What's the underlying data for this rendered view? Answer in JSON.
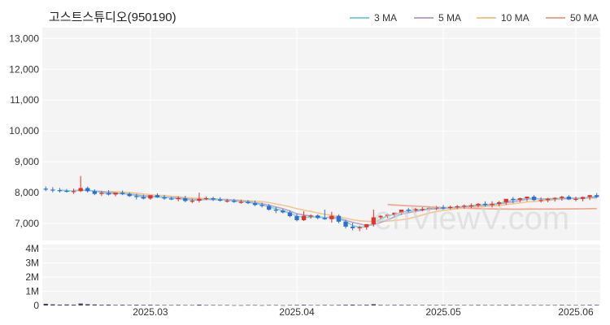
{
  "chart_data": {
    "type": "candlestick",
    "title": "고스트스튜디오(950190)",
    "watermark": "enViewV.com",
    "legend": [
      {
        "name": "3 MA",
        "color": "#7fd1d6"
      },
      {
        "name": "5 MA",
        "color": "#b9a2cc"
      },
      {
        "name": "10 MA",
        "color": "#f3c590"
      },
      {
        "name": "50 MA",
        "color": "#f2a18c"
      }
    ],
    "legend_position": "top-right",
    "colors": {
      "up": "#e8302a",
      "down": "#2f6fd0",
      "volume": "#3b3f66",
      "grid": "#ececec",
      "plot_bg": "#f4f4f4"
    },
    "x_ticks": [
      "2025.03",
      "2025.04",
      "2025.05",
      "2025.06"
    ],
    "x_tick_index": [
      15,
      36,
      57,
      76
    ],
    "y_ticks": [
      "7,000",
      "8,000",
      "9,000",
      "10,000",
      "11,000",
      "12,000",
      "13,000"
    ],
    "y_tick_values": [
      7000,
      8000,
      9000,
      10000,
      11000,
      12000,
      13000
    ],
    "ylim": [
      6450,
      13350
    ],
    "volume_ticks": [
      "0",
      "1M",
      "2M",
      "3M",
      "4M"
    ],
    "volume_tick_values": [
      0,
      1000000,
      2000000,
      3000000,
      4000000
    ],
    "volume_ylim": [
      0,
      4300000
    ],
    "n_days": 80,
    "opens": [
      8130,
      8100,
      8080,
      8060,
      8050,
      8050,
      8150,
      8050,
      7960,
      7990,
      7940,
      8000,
      7960,
      7890,
      7860,
      7810,
      7920,
      7850,
      7810,
      7800,
      7820,
      7730,
      7740,
      7800,
      7820,
      7780,
      7740,
      7740,
      7700,
      7700,
      7660,
      7600,
      7570,
      7450,
      7420,
      7360,
      7240,
      7110,
      7250,
      7260,
      7180,
      7140,
      7250,
      7060,
      6900,
      6850,
      6880,
      6980,
      7200,
      7250,
      7290,
      7350,
      7450,
      7420,
      7470,
      7470,
      7510,
      7520,
      7500,
      7540,
      7560,
      7580,
      7590,
      7640,
      7600,
      7640,
      7690,
      7800,
      7770,
      7820,
      7870,
      7760,
      7760,
      7800,
      7830,
      7870,
      7780,
      7800,
      7860,
      7920
    ],
    "highs": [
      8200,
      8180,
      8150,
      8120,
      8130,
      8540,
      8200,
      8110,
      8050,
      8080,
      8010,
      8070,
      8010,
      7960,
      7940,
      7900,
      7980,
      7930,
      7870,
      7880,
      7900,
      7810,
      8000,
      7870,
      7870,
      7850,
      7800,
      7800,
      7770,
      7760,
      7740,
      7680,
      7630,
      7530,
      7480,
      7430,
      7320,
      7400,
      7300,
      7300,
      7450,
      7380,
      7300,
      7120,
      7020,
      6930,
      6960,
      7450,
      7270,
      7320,
      7360,
      7420,
      7510,
      7510,
      7530,
      7550,
      7580,
      7600,
      7580,
      7600,
      7620,
      7650,
      7660,
      7720,
      7720,
      7730,
      7780,
      7860,
      7840,
      7870,
      7920,
      7850,
      7830,
      7850,
      7900,
      7920,
      7870,
      7870,
      7930,
      7990
    ],
    "lows": [
      8050,
      8010,
      8000,
      8000,
      7960,
      8020,
      8000,
      7920,
      7890,
      7910,
      7880,
      7920,
      7860,
      7780,
      7780,
      7770,
      7830,
      7770,
      7760,
      7720,
      7690,
      7660,
      7680,
      7760,
      7730,
      7710,
      7680,
      7670,
      7640,
      7630,
      7560,
      7520,
      7420,
      7340,
      7330,
      7200,
      7070,
      7080,
      7160,
      7140,
      7120,
      7030,
      7010,
      6840,
      6780,
      6750,
      6800,
      6900,
      7140,
      7170,
      7220,
      7280,
      7370,
      7360,
      7400,
      7420,
      7440,
      7450,
      7460,
      7470,
      7480,
      7500,
      7520,
      7550,
      7520,
      7560,
      7610,
      7660,
      7690,
      7720,
      7730,
      7680,
      7690,
      7710,
      7740,
      7760,
      7720,
      7720,
      7760,
      7830
    ],
    "closes": [
      8100,
      8080,
      8060,
      8050,
      8050,
      8150,
      8050,
      7960,
      7990,
      7940,
      8000,
      7960,
      7890,
      7860,
      7810,
      7920,
      7850,
      7810,
      7800,
      7820,
      7730,
      7740,
      7800,
      7820,
      7780,
      7740,
      7740,
      7700,
      7700,
      7660,
      7600,
      7570,
      7450,
      7420,
      7360,
      7240,
      7110,
      7250,
      7260,
      7180,
      7140,
      7250,
      7060,
      6900,
      6850,
      6880,
      6980,
      7200,
      7250,
      7290,
      7350,
      7450,
      7420,
      7470,
      7470,
      7510,
      7520,
      7500,
      7540,
      7560,
      7580,
      7590,
      7640,
      7600,
      7640,
      7690,
      7800,
      7770,
      7820,
      7870,
      7760,
      7760,
      7800,
      7830,
      7870,
      7780,
      7800,
      7860,
      7920,
      7860
    ],
    "volumes": [
      120000,
      80000,
      60000,
      70000,
      60000,
      140000,
      90000,
      70000,
      50000,
      60000,
      40000,
      50000,
      40000,
      50000,
      40000,
      50000,
      40000,
      30000,
      30000,
      40000,
      30000,
      30000,
      60000,
      30000,
      30000,
      30000,
      30000,
      20000,
      20000,
      30000,
      30000,
      20000,
      30000,
      30000,
      20000,
      30000,
      40000,
      50000,
      30000,
      30000,
      40000,
      30000,
      40000,
      50000,
      60000,
      40000,
      50000,
      90000,
      40000,
      30000,
      40000,
      40000,
      40000,
      30000,
      30000,
      30000,
      30000,
      30000,
      30000,
      30000,
      30000,
      30000,
      40000,
      30000,
      30000,
      30000,
      40000,
      40000,
      30000,
      30000,
      30000,
      30000,
      30000,
      30000,
      40000,
      30000,
      30000,
      30000,
      40000,
      40000
    ]
  }
}
